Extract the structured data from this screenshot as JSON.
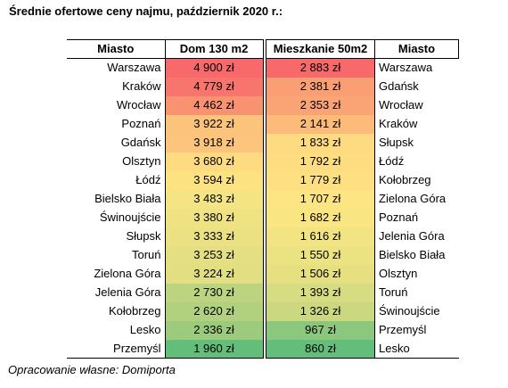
{
  "title": "Średnie ofertowe ceny najmu, październik 2020 r.:",
  "footer": "Opracowanie własne: Domiporta",
  "left_table": {
    "headers": {
      "city": "Miasto",
      "value": "Dom 130 m2"
    },
    "rows": [
      {
        "city": "Warszawa",
        "value": "4 900 zł",
        "color": "#f8696b"
      },
      {
        "city": "Kraków",
        "value": "4 779 zł",
        "color": "#f8756d"
      },
      {
        "city": "Wrocław",
        "value": "4 462 zł",
        "color": "#f99271"
      },
      {
        "city": "Poznań",
        "value": "3 922 zł",
        "color": "#fcc47b"
      },
      {
        "city": "Gdańsk",
        "value": "3 918 zł",
        "color": "#fcc47c"
      },
      {
        "city": "Olsztyn",
        "value": "3 680 zł",
        "color": "#fedb80"
      },
      {
        "city": "Łódź",
        "value": "3 594 zł",
        "color": "#fde282"
      },
      {
        "city": "Bielsko Biała",
        "value": "3 483 zł",
        "color": "#f5e483"
      },
      {
        "city": "Świnoujście",
        "value": "3 380 zł",
        "color": "#eee282"
      },
      {
        "city": "Słupsk",
        "value": "3 333 zł",
        "color": "#ebe182"
      },
      {
        "city": "Toruń",
        "value": "3 253 zł",
        "color": "#e4df82"
      },
      {
        "city": "Zielona Góra",
        "value": "3 224 zł",
        "color": "#e2df82"
      },
      {
        "city": "Jelenia Góra",
        "value": "2 730 zł",
        "color": "#bcd47f"
      },
      {
        "city": "Kołobrzeg",
        "value": "2 620 zł",
        "color": "#b2d17f"
      },
      {
        "city": "Lesko",
        "value": "2 336 zł",
        "color": "#9ccb7d"
      },
      {
        "city": "Przemyśl",
        "value": "1 960 zł",
        "color": "#63be7b"
      }
    ]
  },
  "right_table": {
    "headers": {
      "value": "Mieszkanie 50m2",
      "city": "Miasto"
    },
    "rows": [
      {
        "value": "2 883 zł",
        "city": "Warszawa",
        "color": "#f8696b"
      },
      {
        "value": "2 381 zł",
        "city": "Gdańsk",
        "color": "#fa9f74"
      },
      {
        "value": "2 353 zł",
        "city": "Wrocław",
        "color": "#faa375"
      },
      {
        "value": "2 141 zł",
        "city": "Kraków",
        "color": "#fcbb79"
      },
      {
        "value": "1 833 zł",
        "city": "Słupsk",
        "color": "#feda80"
      },
      {
        "value": "1 792 zł",
        "city": "Łódź",
        "color": "#fedd81"
      },
      {
        "value": "1 779 zł",
        "city": "Kołobrzeg",
        "color": "#fee082"
      },
      {
        "value": "1 707 zł",
        "city": "Zielona Góra",
        "color": "#fde583"
      },
      {
        "value": "1 682 zł",
        "city": "Poznań",
        "color": "#f9e683"
      },
      {
        "value": "1 616 zł",
        "city": "Jelenia Góra",
        "color": "#f2e483"
      },
      {
        "value": "1 550 zł",
        "city": "Bielsko Biała",
        "color": "#ebe282"
      },
      {
        "value": "1 506 zł",
        "city": "Olsztyn",
        "color": "#e6e082"
      },
      {
        "value": "1 393 zł",
        "city": "Toruń",
        "color": "#d6dc81"
      },
      {
        "value": "1 326 zł",
        "city": "Świnoujście",
        "color": "#cbd880"
      },
      {
        "value": "967 zł",
        "city": "Przemyśl",
        "color": "#8cc77e"
      },
      {
        "value": "860 zł",
        "city": "Lesko",
        "color": "#63be7b"
      }
    ]
  }
}
